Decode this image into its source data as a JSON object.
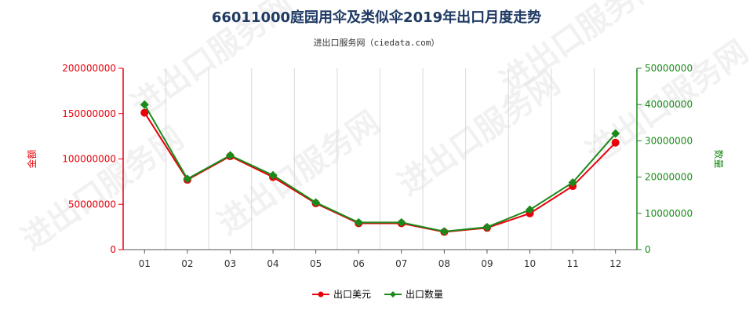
{
  "title": "66011000庭园用伞及类似伞2019年出口月度走势",
  "subtitle": "进出口服务网（ciedata.com）",
  "watermark_text": "进出口服务网",
  "colors": {
    "left_axis": "#e8000b",
    "right_axis": "#1a8a1a",
    "title": "#1f3a63"
  },
  "chart_data": {
    "type": "line",
    "categories": [
      "01",
      "02",
      "03",
      "04",
      "05",
      "06",
      "07",
      "08",
      "09",
      "10",
      "11",
      "12"
    ],
    "y_left": {
      "label": "金额",
      "ylim": [
        0,
        200000000
      ],
      "ticks": [
        0,
        50000000,
        100000000,
        150000000,
        200000000
      ],
      "tick_labels": [
        "0",
        "50000000",
        "100000000",
        "150000000",
        "200000000"
      ]
    },
    "y_right": {
      "label": "数量",
      "ylim": [
        0,
        50000000
      ],
      "ticks": [
        0,
        10000000,
        20000000,
        30000000,
        40000000,
        50000000
      ],
      "tick_labels": [
        "0",
        "10000000",
        "20000000",
        "30000000",
        "40000000",
        "50000000"
      ]
    },
    "series": [
      {
        "name": "出口美元",
        "axis": "left",
        "color": "#e8000b",
        "marker": "circle",
        "values": [
          151000000,
          77000000,
          103000000,
          80000000,
          51000000,
          29000000,
          29000000,
          19500000,
          24000000,
          40000000,
          70000000,
          118000000
        ]
      },
      {
        "name": "出口数量",
        "axis": "right",
        "color": "#1a8a1a",
        "marker": "diamond",
        "values": [
          40000000,
          19500000,
          26000000,
          20500000,
          13000000,
          7500000,
          7500000,
          5000000,
          6200000,
          11000000,
          18500000,
          32000000
        ]
      }
    ],
    "grid": {
      "x": true,
      "y": false
    },
    "legend_position": "bottom-center"
  }
}
